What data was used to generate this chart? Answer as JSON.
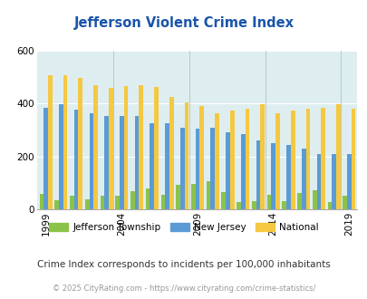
{
  "title": "Jefferson Violent Crime Index",
  "plot_years": [
    1999,
    2000,
    2001,
    2002,
    2003,
    2004,
    2005,
    2006,
    2007,
    2008,
    2009,
    2010,
    2011,
    2012,
    2013,
    2014,
    2015,
    2016,
    2017,
    2018,
    2019
  ],
  "jefferson_vals": [
    57,
    35,
    52,
    38,
    50,
    52,
    67,
    80,
    55,
    92,
    95,
    107,
    65,
    27,
    30,
    55,
    30,
    62,
    72,
    28,
    52
  ],
  "nj_vals": [
    385,
    398,
    378,
    362,
    355,
    355,
    352,
    325,
    325,
    310,
    306,
    310,
    293,
    285,
    262,
    252,
    242,
    230,
    209,
    209,
    209
  ],
  "nat_vals": [
    507,
    507,
    497,
    469,
    460,
    467,
    470,
    462,
    427,
    406,
    390,
    365,
    373,
    381,
    397,
    365,
    373,
    381,
    383,
    397,
    380
  ],
  "bar_width": 0.28,
  "ylim": [
    0,
    600
  ],
  "ytick_labels": [
    "0",
    "200",
    "400",
    "600"
  ],
  "ytick_vals": [
    0,
    200,
    400,
    600
  ],
  "xtick_years": [
    1999,
    2004,
    2009,
    2014,
    2019
  ],
  "plot_bg": "#deeef0",
  "jefferson_color": "#8bc34a",
  "nj_color": "#5b9bd5",
  "national_color": "#f5c842",
  "title_color": "#1a55aa",
  "grid_color": "#ffffff",
  "vline_color": "#bbcccc",
  "legend_label_jefferson": "Jefferson Township",
  "legend_label_nj": "New Jersey",
  "legend_label_national": "National",
  "subtitle": "Crime Index corresponds to incidents per 100,000 inhabitants",
  "footer": "© 2025 CityRating.com - https://www.cityrating.com/crime-statistics/"
}
